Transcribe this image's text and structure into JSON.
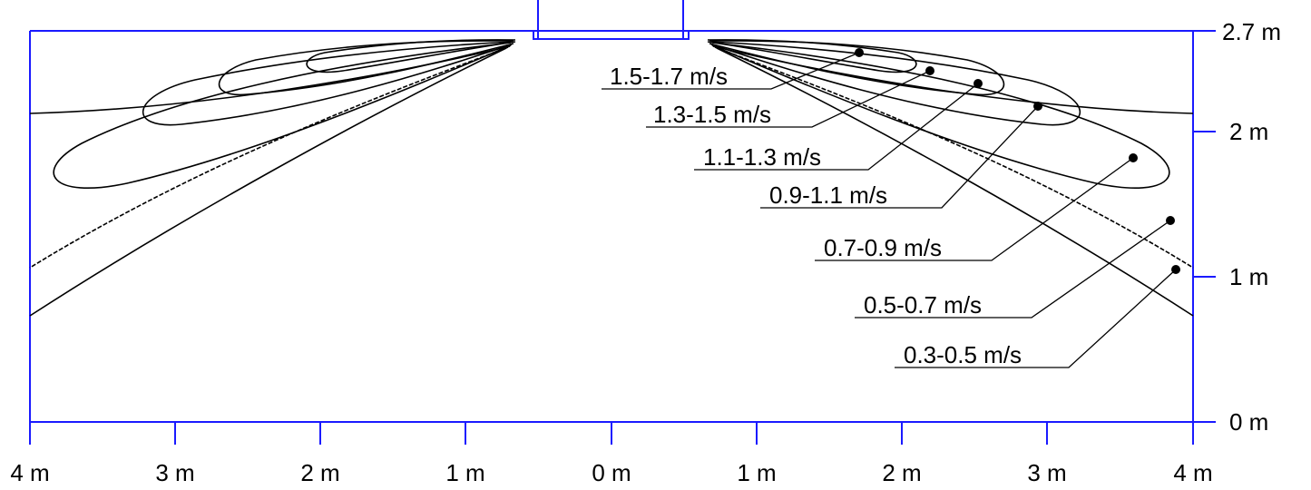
{
  "x_axis": {
    "tick_labels": [
      "4 m",
      "3 m",
      "2 m",
      "1 m",
      "0 m",
      "1 m",
      "2 m",
      "3 m",
      "4 m"
    ],
    "range_m": [
      -4,
      4
    ]
  },
  "y_axis": {
    "tick_labels": [
      "0 m",
      "1 m",
      "2 m",
      "2.7 m"
    ],
    "tick_values_m": [
      0,
      1,
      2,
      2.7
    ],
    "range_m": [
      0,
      2.7
    ],
    "position": "right"
  },
  "velocity_bands": [
    {
      "label": "1.5-1.7 m/s"
    },
    {
      "label": "1.3-1.5 m/s"
    },
    {
      "label": "1.1-1.3 m/s"
    },
    {
      "label": "0.9-1.1 m/s"
    },
    {
      "label": "0.7-0.9 m/s"
    },
    {
      "label": "0.5-0.7 m/s"
    },
    {
      "label": "0.3-0.5 m/s"
    }
  ],
  "colors": {
    "axis": "#1a1aff",
    "contour": "#000000",
    "label": "#000000"
  }
}
